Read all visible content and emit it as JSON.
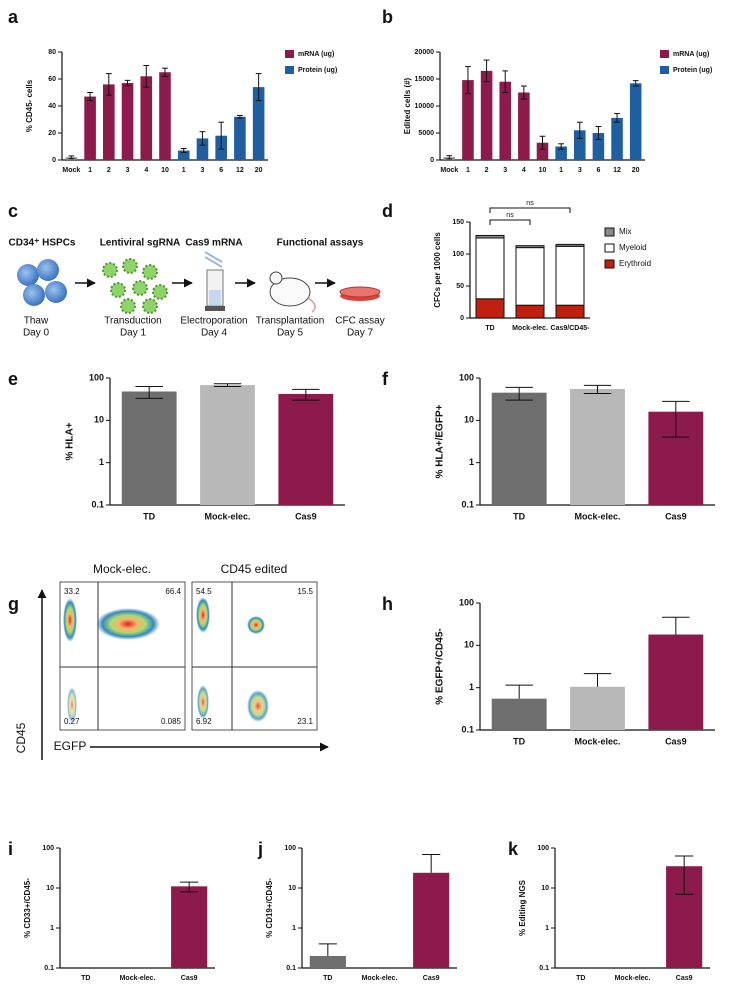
{
  "chart_data": [
    {
      "panel": "a",
      "type": "bar",
      "ylabel": "% CD45- cells",
      "categories": [
        "Mock",
        "1",
        "2",
        "3",
        "4",
        "10",
        "1",
        "3",
        "6",
        "12",
        "20"
      ],
      "values": [
        2,
        47,
        56,
        57,
        62,
        65,
        7,
        16,
        18,
        32,
        54
      ],
      "errors": [
        1,
        3,
        8,
        2,
        8,
        3,
        1.5,
        5,
        10,
        1,
        10
      ],
      "bar_colors": [
        "#888888",
        "#8c1a4b",
        "#8c1a4b",
        "#8c1a4b",
        "#8c1a4b",
        "#8c1a4b",
        "#1f5fa0",
        "#1f5fa0",
        "#1f5fa0",
        "#1f5fa0",
        "#1f5fa0"
      ],
      "legend": [
        {
          "name": "mRNA (ug)",
          "color": "#8c1a4b"
        },
        {
          "name": "Protein (ug)",
          "color": "#1f5fa0"
        }
      ],
      "ylim": [
        0,
        80
      ],
      "yticks": [
        0,
        20,
        40,
        60,
        80
      ]
    },
    {
      "panel": "b",
      "type": "bar",
      "ylabel": "Edited cells (#)",
      "categories": [
        "Mock",
        "1",
        "2",
        "3",
        "4",
        "10",
        "1",
        "3",
        "6",
        "12",
        "20"
      ],
      "values": [
        500,
        14800,
        16500,
        14500,
        12500,
        3200,
        2500,
        5500,
        5000,
        7800,
        14200
      ],
      "errors": [
        300,
        2500,
        2000,
        2000,
        1200,
        1200,
        500,
        1500,
        1200,
        800,
        500
      ],
      "bar_colors": [
        "#888888",
        "#8c1a4b",
        "#8c1a4b",
        "#8c1a4b",
        "#8c1a4b",
        "#8c1a4b",
        "#1f5fa0",
        "#1f5fa0",
        "#1f5fa0",
        "#1f5fa0",
        "#1f5fa0"
      ],
      "legend": [
        {
          "name": "mRNA (ug)",
          "color": "#8c1a4b"
        },
        {
          "name": "Protein (ug)",
          "color": "#1f5fa0"
        }
      ],
      "ylim": [
        0,
        20000
      ],
      "yticks": [
        0,
        5000,
        10000,
        15000,
        20000
      ]
    },
    {
      "panel": "d",
      "type": "stacked_bar",
      "ylabel": "CFCs per 1000 cells",
      "categories": [
        "TD",
        "Mock-elec.",
        "Cas9/CD45-"
      ],
      "series": [
        {
          "name": "Erythroid",
          "color": "#c0200f",
          "values": [
            30,
            20,
            20
          ]
        },
        {
          "name": "Myeloid",
          "color": "#ffffff",
          "values": [
            95,
            90,
            92
          ]
        },
        {
          "name": "Mix",
          "color": "#888888",
          "values": [
            4,
            3,
            3
          ]
        }
      ],
      "annotations": [
        "ns",
        "ns"
      ],
      "ylim": [
        0,
        150
      ],
      "yticks": [
        0,
        50,
        100,
        150
      ]
    },
    {
      "panel": "e",
      "type": "bar",
      "log": true,
      "ylabel": "% HLA+",
      "categories": [
        "TD",
        "Mock-elec.",
        "Cas9"
      ],
      "values": [
        48,
        68,
        42
      ],
      "errors": [
        15,
        5,
        12
      ],
      "bar_colors": [
        "#6e6e6e",
        "#b8b8b8",
        "#8c1a4b"
      ],
      "ylim": [
        0.1,
        100
      ],
      "yticks": [
        0.1,
        1,
        10,
        100
      ]
    },
    {
      "panel": "f",
      "type": "bar",
      "log": true,
      "ylabel": "% HLA+/EGFP+",
      "categories": [
        "TD",
        "Mock-elec.",
        "Cas9"
      ],
      "values": [
        45,
        55,
        16
      ],
      "errors": [
        15,
        12,
        12
      ],
      "bar_colors": [
        "#6e6e6e",
        "#b8b8b8",
        "#8c1a4b"
      ],
      "ylim": [
        0.1,
        100
      ],
      "yticks": [
        0.1,
        1,
        10,
        100
      ]
    },
    {
      "panel": "h",
      "type": "bar",
      "log": true,
      "ylabel": "% EGFP+/CD45-",
      "categories": [
        "TD",
        "Mock-elec.",
        "Cas9"
      ],
      "values": [
        0.55,
        1.05,
        18
      ],
      "errors": [
        0.6,
        1.1,
        28
      ],
      "bar_colors": [
        "#6e6e6e",
        "#b8b8b8",
        "#8c1a4b"
      ],
      "ylim": [
        0.1,
        100
      ],
      "yticks": [
        0.1,
        1,
        10,
        100
      ]
    },
    {
      "panel": "i",
      "type": "bar",
      "log": true,
      "ylabel": "% CD33+/CD45-",
      "categories": [
        "TD",
        "Mock-elec.",
        "Cas9"
      ],
      "values": [
        0.1,
        0.1,
        11
      ],
      "errors": [
        0,
        0,
        3
      ],
      "bar_colors": [
        "#6e6e6e",
        "#b8b8b8",
        "#8c1a4b"
      ],
      "ylim": [
        0.1,
        100
      ],
      "yticks": [
        0.1,
        1,
        10,
        100
      ]
    },
    {
      "panel": "j",
      "type": "bar",
      "log": true,
      "ylabel": "% CD19+/CD45-",
      "categories": [
        "TD",
        "Mock-elec.",
        "Cas9"
      ],
      "values": [
        0.2,
        0.1,
        24
      ],
      "errors": [
        0.2,
        0,
        45
      ],
      "bar_colors": [
        "#6e6e6e",
        "#b8b8b8",
        "#8c1a4b"
      ],
      "ylim": [
        0.1,
        100
      ],
      "yticks": [
        0.1,
        1,
        10,
        100
      ]
    },
    {
      "panel": "k",
      "type": "bar",
      "log": true,
      "ylabel": "% Editing NGS",
      "categories": [
        "TD",
        "Mock-elec.",
        "Cas9"
      ],
      "values": [
        0.1,
        0.1,
        35
      ],
      "errors": [
        0,
        0,
        28
      ],
      "bar_colors": [
        "#6e6e6e",
        "#b8b8b8",
        "#8c1a4b"
      ],
      "ylim": [
        0.1,
        100
      ],
      "yticks": [
        0.1,
        1,
        10,
        100
      ]
    }
  ],
  "diagram_c": {
    "panel": "c",
    "headings": [
      "CD34⁺ HSPCs",
      "Lentiviral sgRNA",
      "Cas9 mRNA",
      "Functional assays"
    ],
    "steps": [
      {
        "name": "Thaw",
        "day": "Day 0"
      },
      {
        "name": "Transduction",
        "day": "Day 1"
      },
      {
        "name": "Electroporation",
        "day": "Day 4"
      },
      {
        "name": "Transplantation",
        "day": "Day 5"
      },
      {
        "name": "CFC assay",
        "day": "Day 7"
      }
    ]
  },
  "flow_g": {
    "panel": "g",
    "titles": [
      "Mock-elec.",
      "CD45 edited"
    ],
    "ylabel": "CD45",
    "xlabel": "EGFP",
    "plots": [
      [
        "33.2",
        "66.4",
        "0.27",
        "0.085"
      ],
      [
        "54.5",
        "15.5",
        "6.92",
        "23.1"
      ]
    ]
  }
}
